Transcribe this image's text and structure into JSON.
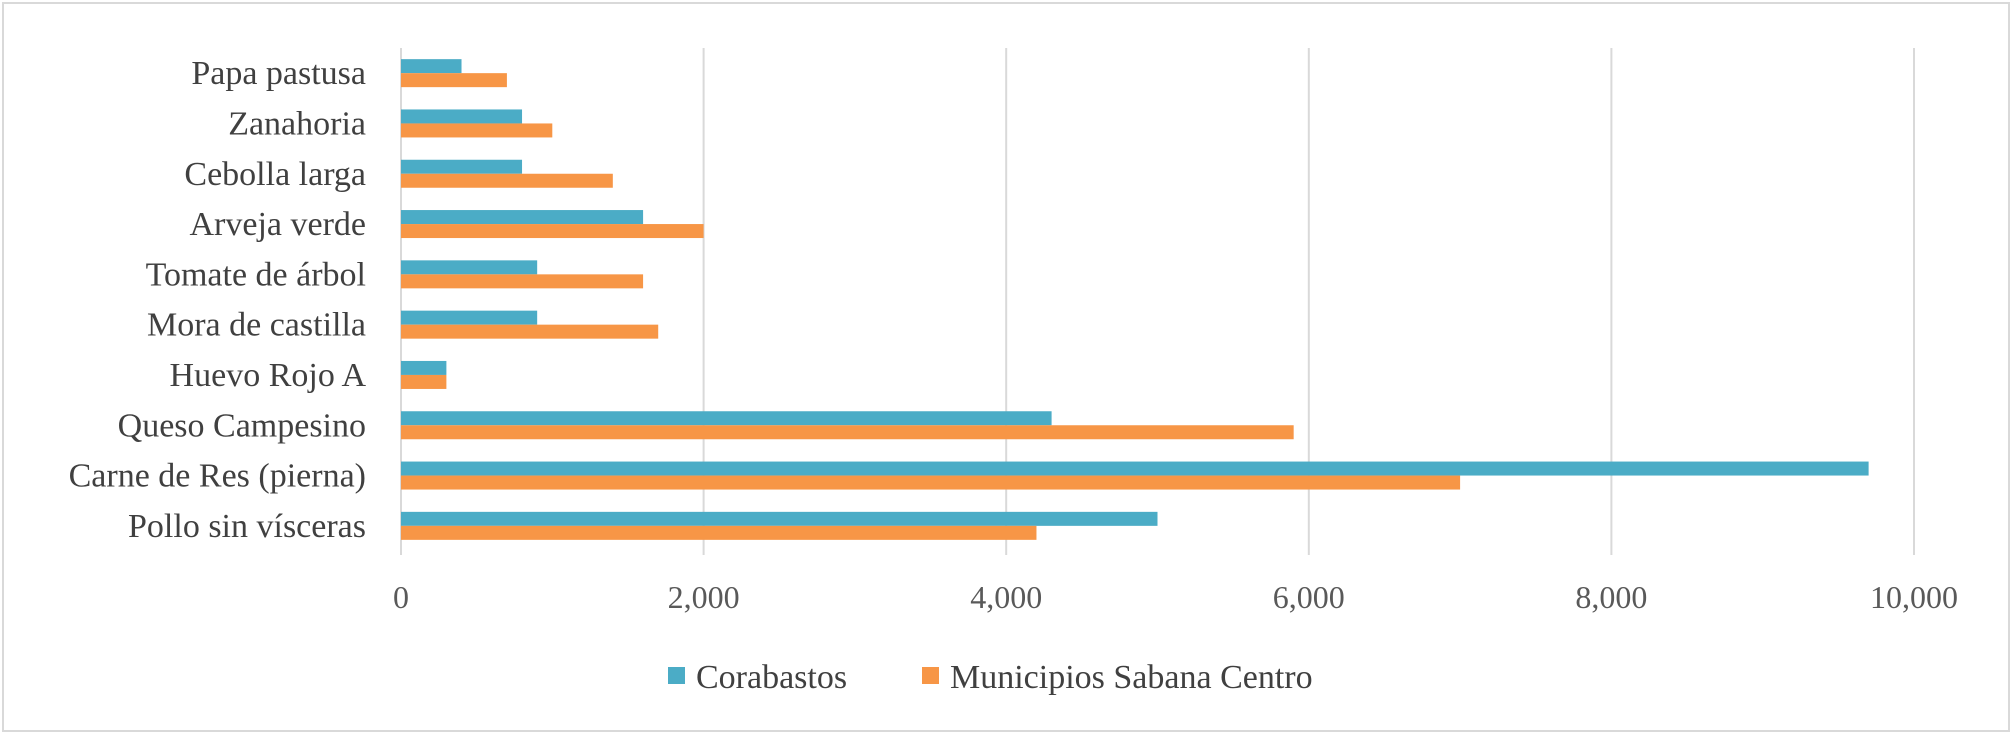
{
  "chart_data": {
    "type": "bar",
    "orientation": "horizontal",
    "categories": [
      "Papa pastusa",
      "Zanahoria",
      "Cebolla larga",
      "Arveja verde",
      "Tomate de árbol",
      "Mora de castilla",
      "Huevo Rojo A",
      "Queso Campesino",
      "Carne de Res (pierna)",
      "Pollo sin vísceras"
    ],
    "series": [
      {
        "name": "Corabastos",
        "color": "#4bacc6",
        "values": [
          400,
          800,
          800,
          1600,
          900,
          900,
          300,
          4300,
          9700,
          5000
        ]
      },
      {
        "name": "Municipios Sabana Centro",
        "color": "#f79646",
        "values": [
          700,
          1000,
          1400,
          2000,
          1600,
          1700,
          300,
          5900,
          7000,
          4200
        ]
      }
    ],
    "xlim": [
      0,
      10000
    ],
    "x_ticks": [
      0,
      2000,
      4000,
      6000,
      8000,
      10000
    ],
    "x_tick_labels": [
      "0",
      "2,000",
      "4,000",
      "6,000",
      "8,000",
      "10,000"
    ],
    "grid": "vertical",
    "legend_position": "bottom",
    "title": "",
    "xlabel": "",
    "ylabel": ""
  }
}
